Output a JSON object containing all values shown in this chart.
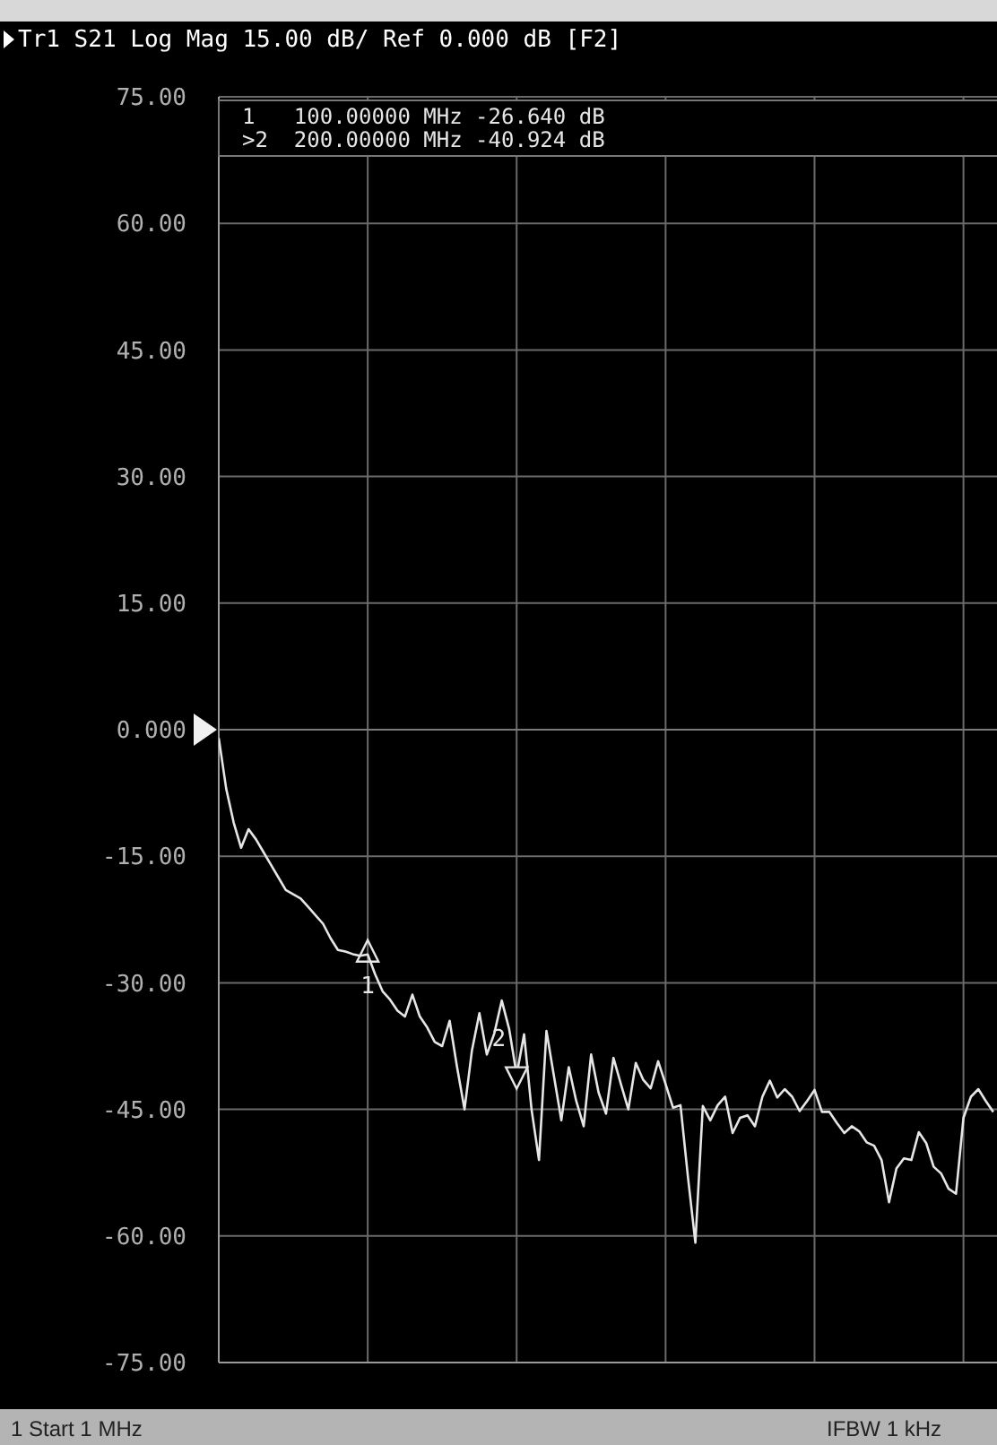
{
  "chart_data": {
    "type": "line",
    "title": "Tr1 S21 Log Mag 15.00 dB/ Ref 0.000 dB [F2]",
    "categories": [
      null,
      null,
      null,
      null,
      null,
      null,
      null,
      null,
      null,
      null,
      null,
      null,
      null,
      null,
      null,
      null,
      null,
      null,
      null,
      null,
      null,
      null,
      null,
      null,
      null,
      null,
      null,
      null,
      null,
      null,
      null,
      null,
      null,
      null,
      null,
      null,
      null,
      null,
      null,
      null,
      null,
      null,
      null,
      null,
      null,
      null,
      null,
      null,
      null,
      null,
      null,
      null,
      null,
      null,
      null,
      null,
      null,
      null,
      null,
      null,
      null,
      null,
      null,
      null,
      null,
      null,
      null,
      null,
      null,
      null,
      null,
      null,
      null,
      null,
      null,
      null,
      null,
      null,
      null,
      null,
      null,
      null,
      null,
      null,
      null,
      null,
      null,
      null,
      null,
      null,
      null,
      null,
      null,
      null,
      null,
      null,
      null,
      null,
      null,
      null,
      null,
      null,
      null,
      null,
      null
    ],
    "series": [
      {
        "color": "#e6e6e6",
        "values": [
          -1,
          -7,
          -11,
          -14,
          -11.8,
          -13,
          -14.5,
          -16,
          -17.5,
          -19,
          -19.5,
          -20,
          -21,
          -22,
          -23,
          -24.7,
          -26.1,
          -26.3,
          -26.6,
          -26.8,
          -26.64,
          -29,
          -31,
          -32,
          -33.3,
          -34,
          -31.4,
          -34,
          -35.3,
          -37,
          -37.5,
          -34.5,
          -40,
          -45,
          -38,
          -33.6,
          -38.5,
          -36,
          -32.1,
          -35.5,
          -40.9,
          -36.1,
          -45,
          -51,
          -35.7,
          -41,
          -46.3,
          -40,
          -44,
          -47,
          -38.5,
          -43,
          -45.5,
          -38.9,
          -42,
          -45,
          -39.5,
          -41.5,
          -42.5,
          -39.3,
          -42,
          -44.8,
          -44.5,
          -53,
          -60.8,
          -44.6,
          -46.3,
          -44.5,
          -43.5,
          -47.8,
          -46,
          -45.7,
          -47,
          -43.5,
          -41.6,
          -43.6,
          -42.6,
          -43.5,
          -45.2,
          -44,
          -42.7,
          -45.3,
          -45.3,
          -46.6,
          -47.8,
          -47,
          -47.6,
          -48.9,
          -49.3,
          -51,
          -56,
          -52,
          -50.8,
          -51,
          -47.7,
          -49,
          -51.8,
          -52.6,
          -54.4,
          -55,
          -46,
          -43.5,
          -42.6,
          -44,
          -45.3
        ]
      },
      {
        "type": "scatter",
        "name": "1",
        "color": "#e6e6e6",
        "marker": "triangle",
        "values": [
          null,
          null,
          null,
          null,
          null,
          null,
          null,
          null,
          null,
          null,
          null,
          null,
          null,
          null,
          null,
          null,
          null,
          null,
          null,
          null,
          -26.6,
          null,
          null,
          null,
          null,
          null,
          null,
          null,
          null,
          null,
          null,
          null,
          null,
          null,
          null,
          null,
          null,
          null,
          null,
          null,
          null,
          null,
          null,
          null,
          null,
          null,
          null,
          null,
          null,
          null,
          null,
          null,
          null,
          null,
          null,
          null,
          null,
          null,
          null,
          null,
          null,
          null,
          null,
          null,
          null,
          null,
          null,
          null,
          null,
          null,
          null,
          null,
          null,
          null,
          null,
          null,
          null,
          null,
          null,
          null,
          null,
          null,
          null,
          null,
          null,
          null,
          null,
          null,
          null,
          null,
          null,
          null,
          null,
          null,
          null,
          null,
          null,
          null,
          null,
          null,
          null,
          null,
          null,
          null,
          null
        ]
      },
      {
        "type": "scatter",
        "name": "2",
        "color": "#e6e6e6",
        "marker": "triangle",
        "values": [
          null,
          null,
          null,
          null,
          null,
          null,
          null,
          null,
          null,
          null,
          null,
          null,
          null,
          null,
          null,
          null,
          null,
          null,
          null,
          null,
          null,
          null,
          null,
          null,
          null,
          null,
          null,
          null,
          null,
          null,
          null,
          null,
          null,
          null,
          null,
          null,
          null,
          null,
          null,
          null,
          -40.9,
          null,
          null,
          null,
          null,
          null,
          null,
          null,
          null,
          null,
          null,
          null,
          null,
          null,
          null,
          null,
          null,
          null,
          null,
          null,
          null,
          null,
          null,
          null,
          null,
          null,
          null,
          null,
          null,
          null,
          null,
          null,
          null,
          null,
          null,
          null,
          null,
          null,
          null,
          null,
          null,
          null,
          null,
          null,
          null,
          null,
          null,
          null,
          null,
          null,
          null,
          null,
          null,
          null,
          null,
          null,
          null,
          null,
          null,
          null,
          null,
          null,
          null,
          null,
          null
        ]
      }
    ],
    "ylim": [
      -75,
      75
    ],
    "yticks": [
      {
        "value": 75,
        "label": "75.00"
      },
      {
        "value": 60,
        "label": "60.00"
      },
      {
        "value": 45,
        "label": "45.00"
      },
      {
        "value": 30,
        "label": "30.00"
      },
      {
        "value": 15,
        "label": "15.00"
      },
      {
        "value": 0,
        "label": "0.000"
      },
      {
        "value": -15,
        "label": "-15.00"
      },
      {
        "value": -30,
        "label": "-30.00"
      },
      {
        "value": -45,
        "label": "-45.00"
      },
      {
        "value": -60,
        "label": "-60.00"
      },
      {
        "value": -75,
        "label": "-75.00"
      }
    ],
    "tick_labels": "y",
    "grid": true,
    "marker": "none",
    "line_style": "solid",
    "ref_lines": [
      {
        "axis": "y",
        "value": 0
      }
    ],
    "annotations": [
      "1   100.00000 MHz -26.640 dB",
      ">2  200.00000 MHz -40.924 dB",
      "1 Start 1 MHz",
      "IFBW 1 kHz"
    ]
  }
}
